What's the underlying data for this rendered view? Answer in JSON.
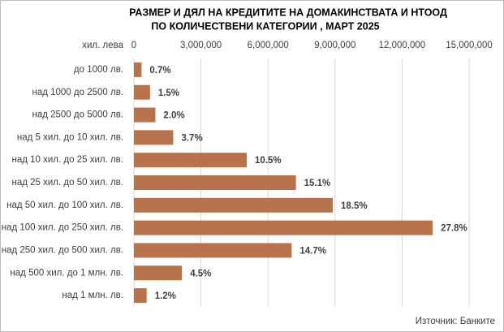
{
  "chart_data": {
    "type": "barh",
    "title": "РАЗМЕР И ДЯЛ НА КРЕДИТИТЕ НА ДОМАКИНСТВАТА И НТООД",
    "subtitle": "ПО КОЛИЧЕСТВЕНИ КАТЕГОРИИ , МАРТ 2025",
    "x_label": "хил. лева",
    "source": "Източник: Банките",
    "categories": [
      "до 1000 лв.",
      "над 1000 до 2500 лв.",
      "над 2500 до 5000 лв.",
      "над 5 хил. до 10 хил. лв.",
      "над 10 хил. до 25 хил. лв.",
      "над 25 хил. до 50 хил. лв.",
      "над 50 хил. до 100 хил. лв.",
      "над 100 хил. до 250 хил. лв.",
      "над 250 хил. до 500 хил. лв.",
      "над 500 хил. до 1 млн. лв.",
      "над 1 млн. лв."
    ],
    "values": [
      340000,
      720000,
      960000,
      1760000,
      5050000,
      7250000,
      8900000,
      13370000,
      7060000,
      2150000,
      570000
    ],
    "share_labels": [
      "0.7%",
      "1.5%",
      "2.0%",
      "3.7%",
      "10.5%",
      "15.1%",
      "18.5%",
      "27.8%",
      "14.7%",
      "4.5%",
      "1.2%"
    ],
    "color": "#b8724c",
    "xlim": [
      0,
      15000000
    ],
    "xticks": [
      0,
      {
        "value": 3000000,
        "label": "3,000,000"
      },
      {
        "value": 6000000,
        "label": "6,000,000"
      },
      {
        "value": 9000000,
        "label": "9,000,000"
      },
      {
        "value": 12000000,
        "label": "12,000,000"
      },
      {
        "value": 15000000,
        "label": "15,000,000"
      }
    ],
    "grid": true
  }
}
